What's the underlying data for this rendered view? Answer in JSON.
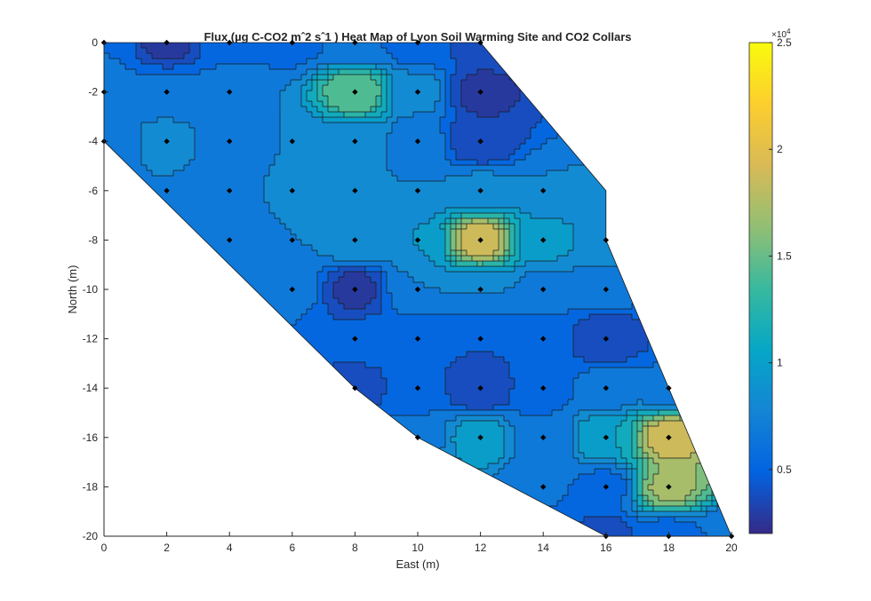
{
  "chart_data": {
    "type": "heatmap",
    "subtype": "filled-contour",
    "title": "Flux (µg C-CO2 mˆ2 sˆ1 ) Heat Map of Lyon Soil Warming Site and CO2 Collars",
    "xlabel": "East (m)",
    "ylabel": "North (m)",
    "xlim": [
      0,
      20
    ],
    "ylim": [
      -20,
      0
    ],
    "x_ticks": [
      "0",
      "2",
      "4",
      "6",
      "8",
      "10",
      "12",
      "14",
      "16",
      "18",
      "20"
    ],
    "y_ticks": [
      "0",
      "-2",
      "-4",
      "-6",
      "-8",
      "-10",
      "-12",
      "-14",
      "-16",
      "-18",
      "-20"
    ],
    "colorbar": {
      "colormap": "parula",
      "range": [
        2000,
        25000
      ],
      "ticks": [
        5000,
        10000,
        15000,
        20000,
        25000
      ],
      "tick_labels": [
        "0.5",
        "1",
        "1.5",
        "2",
        "2.5"
      ],
      "exponent_label": "×10",
      "exponent_power": "4"
    },
    "domain_outline": [
      [
        0,
        0
      ],
      [
        12,
        0
      ],
      [
        16,
        -6
      ],
      [
        16,
        -8
      ],
      [
        18,
        -14
      ],
      [
        20,
        -20
      ],
      [
        16,
        -20
      ],
      [
        10,
        -16
      ],
      [
        8,
        -14
      ],
      [
        0,
        -4
      ]
    ],
    "collars": [
      {
        "x": 0,
        "y": 0,
        "flux": 6000
      },
      {
        "x": 2,
        "y": 0,
        "flux": 2500
      },
      {
        "x": 4,
        "y": 0,
        "flux": 5500
      },
      {
        "x": 6,
        "y": 0,
        "flux": 5500
      },
      {
        "x": 8,
        "y": 0,
        "flux": 6000
      },
      {
        "x": 10,
        "y": 0,
        "flux": 5000
      },
      {
        "x": 12,
        "y": 0,
        "flux": 4000
      },
      {
        "x": 0,
        "y": -2,
        "flux": 7000
      },
      {
        "x": 2,
        "y": -2,
        "flux": 6500
      },
      {
        "x": 4,
        "y": -2,
        "flux": 7000
      },
      {
        "x": 8,
        "y": -2,
        "flux": 15000
      },
      {
        "x": 10,
        "y": -2,
        "flux": 8000
      },
      {
        "x": 12,
        "y": -2,
        "flux": 2500
      },
      {
        "x": 0,
        "y": -4,
        "flux": 6500
      },
      {
        "x": 2,
        "y": -4,
        "flux": 8000
      },
      {
        "x": 4,
        "y": -4,
        "flux": 7000
      },
      {
        "x": 6,
        "y": -4,
        "flux": 7500
      },
      {
        "x": 8,
        "y": -4,
        "flux": 8500
      },
      {
        "x": 10,
        "y": -4,
        "flux": 6500
      },
      {
        "x": 12,
        "y": -4,
        "flux": 3000
      },
      {
        "x": 2,
        "y": -6,
        "flux": 7500
      },
      {
        "x": 4,
        "y": -6,
        "flux": 6000
      },
      {
        "x": 6,
        "y": -6,
        "flux": 8000
      },
      {
        "x": 8,
        "y": -6,
        "flux": 7500
      },
      {
        "x": 10,
        "y": -6,
        "flux": 7500
      },
      {
        "x": 12,
        "y": -6,
        "flux": 8000
      },
      {
        "x": 14,
        "y": -6,
        "flux": 7500
      },
      {
        "x": 4,
        "y": -8,
        "flux": 7000
      },
      {
        "x": 6,
        "y": -8,
        "flux": 7500
      },
      {
        "x": 8,
        "y": -8,
        "flux": 9000
      },
      {
        "x": 10,
        "y": -8,
        "flux": 9000
      },
      {
        "x": 12,
        "y": -8,
        "flux": 19000
      },
      {
        "x": 14,
        "y": -8,
        "flux": 9500
      },
      {
        "x": 16,
        "y": -8,
        "flux": 8500
      },
      {
        "x": 6,
        "y": -10,
        "flux": 6500
      },
      {
        "x": 8,
        "y": -10,
        "flux": 2500
      },
      {
        "x": 10,
        "y": -10,
        "flux": 7500
      },
      {
        "x": 12,
        "y": -10,
        "flux": 7500
      },
      {
        "x": 14,
        "y": -10,
        "flux": 7000
      },
      {
        "x": 16,
        "y": -10,
        "flux": 6500
      },
      {
        "x": 8,
        "y": -12,
        "flux": 5000
      },
      {
        "x": 10,
        "y": -12,
        "flux": 5000
      },
      {
        "x": 12,
        "y": -12,
        "flux": 4500
      },
      {
        "x": 14,
        "y": -12,
        "flux": 5000
      },
      {
        "x": 16,
        "y": -12,
        "flux": 3000
      },
      {
        "x": 8,
        "y": -14,
        "flux": 4000
      },
      {
        "x": 10,
        "y": -14,
        "flux": 5000
      },
      {
        "x": 12,
        "y": -14,
        "flux": 3000
      },
      {
        "x": 14,
        "y": -14,
        "flux": 5500
      },
      {
        "x": 16,
        "y": -14,
        "flux": 6500
      },
      {
        "x": 18,
        "y": -14,
        "flux": 6000
      },
      {
        "x": 10,
        "y": -16,
        "flux": 7000
      },
      {
        "x": 12,
        "y": -16,
        "flux": 10000
      },
      {
        "x": 14,
        "y": -16,
        "flux": 6000
      },
      {
        "x": 16,
        "y": -16,
        "flux": 10500
      },
      {
        "x": 18,
        "y": -16,
        "flux": 19000
      },
      {
        "x": 14,
        "y": -18,
        "flux": 6000
      },
      {
        "x": 16,
        "y": -18,
        "flux": 5500
      },
      {
        "x": 18,
        "y": -18,
        "flux": 17000
      },
      {
        "x": 16,
        "y": -20,
        "flux": 4000
      },
      {
        "x": 18,
        "y": -20,
        "flux": 5000
      },
      {
        "x": 20,
        "y": -20,
        "flux": 6000
      }
    ]
  },
  "colors": {
    "parula_stops": [
      "#352a87",
      "#0363e1",
      "#1485d4",
      "#06a7c6",
      "#38b99e",
      "#92bf73",
      "#d9ba56",
      "#fcce2e",
      "#f9fb0e"
    ],
    "contour_line": "#1a1a1a",
    "marker": "#000000",
    "axis": "#262626"
  }
}
